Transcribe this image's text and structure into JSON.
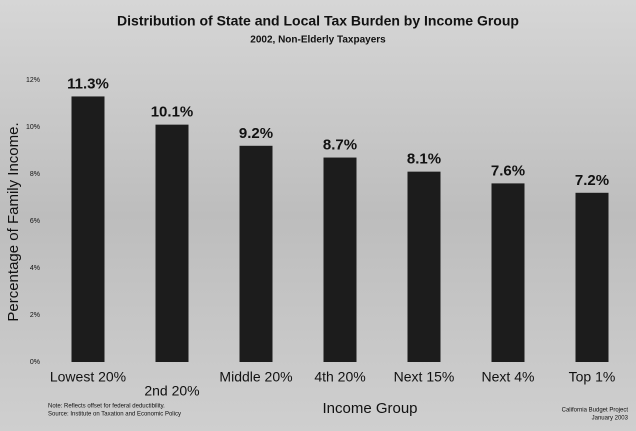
{
  "chart_data": {
    "type": "bar",
    "title": "Distribution of State and Local Tax Burden by Income Group",
    "subtitle": "2002, Non-Elderly Taxpayers",
    "y_axis_label": "Percentage of Family Income.",
    "x_axis_label": "Income Group",
    "categories": [
      "Lowest 20%",
      "2nd 20%",
      "Middle 20%",
      "4th 20%",
      "Next 15%",
      "Next 4%",
      "Top 1%"
    ],
    "values": [
      11.3,
      10.1,
      9.2,
      8.7,
      8.1,
      7.6,
      7.2
    ],
    "value_labels": [
      "11.3%",
      "10.1%",
      "9.2%",
      "8.7%",
      "8.1%",
      "7.6%",
      "7.2%"
    ],
    "color": "#1c1c1c",
    "ylim": [
      0,
      12
    ],
    "yticks": [
      {
        "value": 0,
        "label": "0%"
      },
      {
        "value": 2,
        "label": "2%"
      },
      {
        "value": 4,
        "label": "4%"
      },
      {
        "value": 6,
        "label": "6%"
      },
      {
        "value": 8,
        "label": "8%"
      },
      {
        "value": 10,
        "label": "10%"
      },
      {
        "value": 12,
        "label": "12%"
      }
    ],
    "notes": [
      "Note: Reflects offset for federal deductibility.",
      "Source: Institute on Taxation and Economic Policy"
    ],
    "credit": [
      "California Budget Project",
      "January 2003"
    ]
  }
}
